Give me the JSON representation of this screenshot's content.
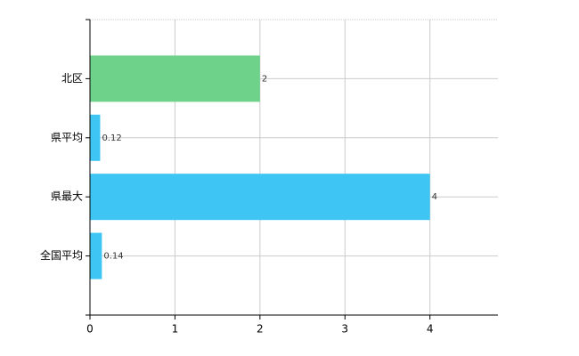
{
  "chart_data": {
    "type": "bar",
    "orientation": "horizontal",
    "categories": [
      "北区",
      "県平均",
      "県最大",
      "全国平均"
    ],
    "values": [
      2,
      0.12,
      4,
      0.14
    ],
    "colors": [
      "#6fd28b",
      "#3ec5f4",
      "#3ec5f4",
      "#3ec5f4"
    ],
    "xlim": [
      0,
      4.8
    ],
    "xticks": [
      0,
      1,
      2,
      3,
      4
    ],
    "grid": true
  }
}
